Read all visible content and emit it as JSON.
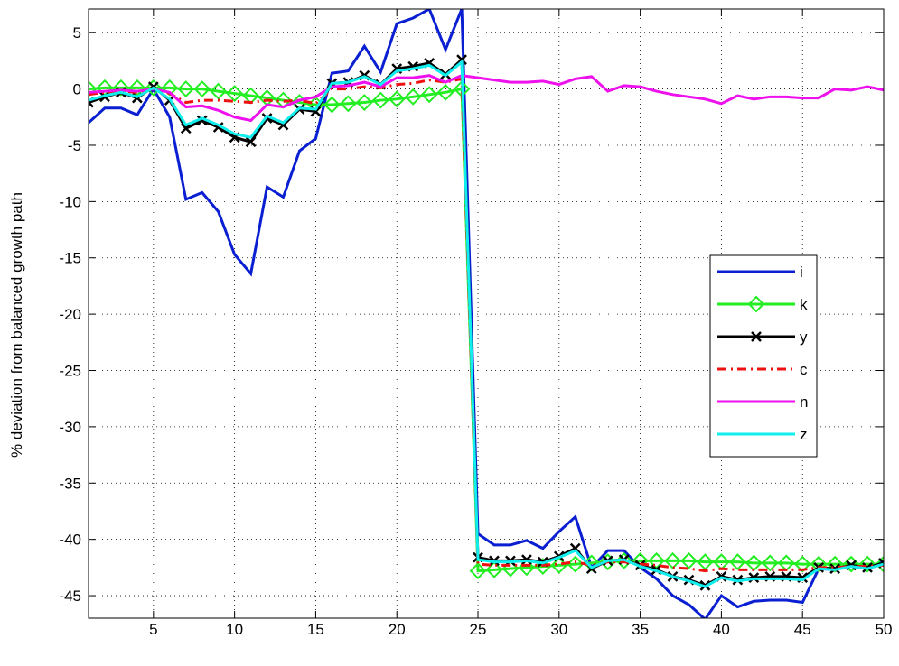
{
  "chart_data": {
    "type": "line",
    "y_label": "% deviation from balanced growth path",
    "x": [
      1,
      2,
      3,
      4,
      5,
      6,
      7,
      8,
      9,
      10,
      11,
      12,
      13,
      14,
      15,
      16,
      17,
      18,
      19,
      20,
      21,
      22,
      23,
      24,
      25,
      26,
      27,
      28,
      29,
      30,
      31,
      32,
      33,
      34,
      35,
      36,
      37,
      38,
      39,
      40,
      41,
      42,
      43,
      44,
      45,
      46,
      47,
      48,
      49,
      50
    ],
    "series": [
      {
        "name": "i",
        "color": "#0a1ed2",
        "dash": "solid",
        "marker": "none",
        "values": [
          -3,
          -1.7,
          -1.7,
          -2.3,
          0,
          -2.5,
          -9.8,
          -9.2,
          -10.9,
          -14.7,
          -16.4,
          -8.7,
          -9.6,
          -5.5,
          -4.4,
          1.4,
          1.6,
          3.8,
          1.5,
          5.8,
          6.3,
          7.1,
          3.5,
          7.1,
          -39.5,
          -40.5,
          -40.5,
          -40.1,
          -40.8,
          -39.3,
          -38,
          -42.5,
          -41,
          -41,
          -42.5,
          -43.5,
          -45,
          -45.8,
          -47.1,
          -45,
          -46,
          -45.5,
          -45.4,
          -45.4,
          -45.6,
          -42.6,
          -42.7,
          -42.2,
          -42.5,
          -42
        ]
      },
      {
        "name": "k",
        "color": "#22ee22",
        "dash": "solid",
        "marker": "diamond",
        "values": [
          0,
          0.1,
          0.1,
          0.1,
          0.1,
          0.1,
          0,
          0,
          -0.2,
          -0.4,
          -0.6,
          -0.8,
          -1,
          -1.2,
          -1.4,
          -1.4,
          -1.3,
          -1.2,
          -1,
          -0.9,
          -0.7,
          -0.5,
          -0.3,
          0,
          -42.8,
          -42.7,
          -42.6,
          -42.5,
          -42.4,
          -42.3,
          -42.2,
          -42.1,
          -42,
          -41.9,
          -41.9,
          -41.9,
          -41.9,
          -41.9,
          -42,
          -42,
          -42,
          -42.1,
          -42.1,
          -42.1,
          -42.2,
          -42.2,
          -42.2,
          -42.2,
          -42.2,
          -42.2
        ]
      },
      {
        "name": "y",
        "color": "#000000",
        "dash": "solid",
        "marker": "x",
        "values": [
          -1.2,
          -0.7,
          -0.3,
          -0.8,
          0.2,
          -1,
          -3.5,
          -2.8,
          -3.4,
          -4.3,
          -4.7,
          -2.6,
          -3.2,
          -1.8,
          -2,
          0.5,
          0.6,
          1.2,
          0.4,
          1.8,
          2,
          2.3,
          1.3,
          2.6,
          -41.6,
          -41.9,
          -41.9,
          -41.8,
          -42,
          -41.5,
          -40.8,
          -42.6,
          -41.9,
          -41.8,
          -42.3,
          -42.7,
          -43.3,
          -43.6,
          -44.1,
          -43.3,
          -43.6,
          -43.4,
          -43.3,
          -43.3,
          -43.4,
          -42.5,
          -42.6,
          -42.3,
          -42.5,
          -42.1
        ]
      },
      {
        "name": "c",
        "color": "#ee1111",
        "dash": "dashdot",
        "marker": "none",
        "values": [
          -0.5,
          -0.3,
          -0.2,
          -0.3,
          0,
          -0.4,
          -1.2,
          -1,
          -1,
          -1.1,
          -1.2,
          -1,
          -1.1,
          -1,
          -1.3,
          0,
          0,
          0.2,
          0.1,
          0.4,
          0.5,
          0.8,
          0.6,
          0.9,
          -42.2,
          -42.3,
          -42.3,
          -42.3,
          -42.3,
          -42.2,
          -42,
          -42.3,
          -42,
          -42,
          -42.2,
          -42.3,
          -42.5,
          -42.6,
          -42.8,
          -42.6,
          -42.7,
          -42.7,
          -42.7,
          -42.7,
          -42.7,
          -42.5,
          -42.5,
          -42.4,
          -42.4,
          -42.3
        ]
      },
      {
        "name": "n",
        "color": "#ee11ee",
        "dash": "solid",
        "marker": "none",
        "values": [
          -0.3,
          -0.2,
          -0.1,
          -0.2,
          0,
          -0.3,
          -1.6,
          -1.5,
          -1.9,
          -2.5,
          -2.8,
          -1.4,
          -1.6,
          -1,
          -0.7,
          0.2,
          0.3,
          0.6,
          0.2,
          1,
          1,
          1.2,
          0.6,
          1.2,
          1,
          0.8,
          0.6,
          0.6,
          0.7,
          0.4,
          0.9,
          1.1,
          -0.2,
          0.3,
          0.2,
          -0.2,
          -0.5,
          -0.7,
          -0.9,
          -1.3,
          -0.6,
          -0.9,
          -0.7,
          -0.7,
          -0.8,
          -0.8,
          0,
          -0.1,
          0.2,
          -0.1
        ]
      },
      {
        "name": "z",
        "color": "#11eeee",
        "dash": "solid",
        "marker": "none",
        "values": [
          -1,
          -0.6,
          -0.3,
          -0.7,
          0.1,
          -0.9,
          -3.2,
          -2.6,
          -3.2,
          -4,
          -4.3,
          -2.4,
          -3,
          -1.7,
          -1.8,
          0.5,
          0.6,
          1.1,
          0.4,
          1.6,
          1.8,
          2.1,
          1.2,
          2.4,
          -41.8,
          -42,
          -42,
          -41.9,
          -42.1,
          -41.6,
          -41,
          -42.5,
          -41.9,
          -41.8,
          -42.4,
          -42.8,
          -43.3,
          -43.7,
          -44.2,
          -43.4,
          -43.7,
          -43.5,
          -43.5,
          -43.5,
          -43.6,
          -42.6,
          -42.7,
          -42.4,
          -42.6,
          -42.2
        ]
      }
    ],
    "xlim": [
      1,
      50
    ],
    "xticks": [
      5,
      10,
      15,
      20,
      25,
      30,
      35,
      40,
      45,
      50
    ],
    "ylim": [
      -47,
      7.1
    ],
    "yticks": [
      5,
      0,
      -5,
      -10,
      -15,
      -20,
      -25,
      -30,
      -35,
      -40,
      -45
    ],
    "grid": true,
    "legend": "east"
  }
}
